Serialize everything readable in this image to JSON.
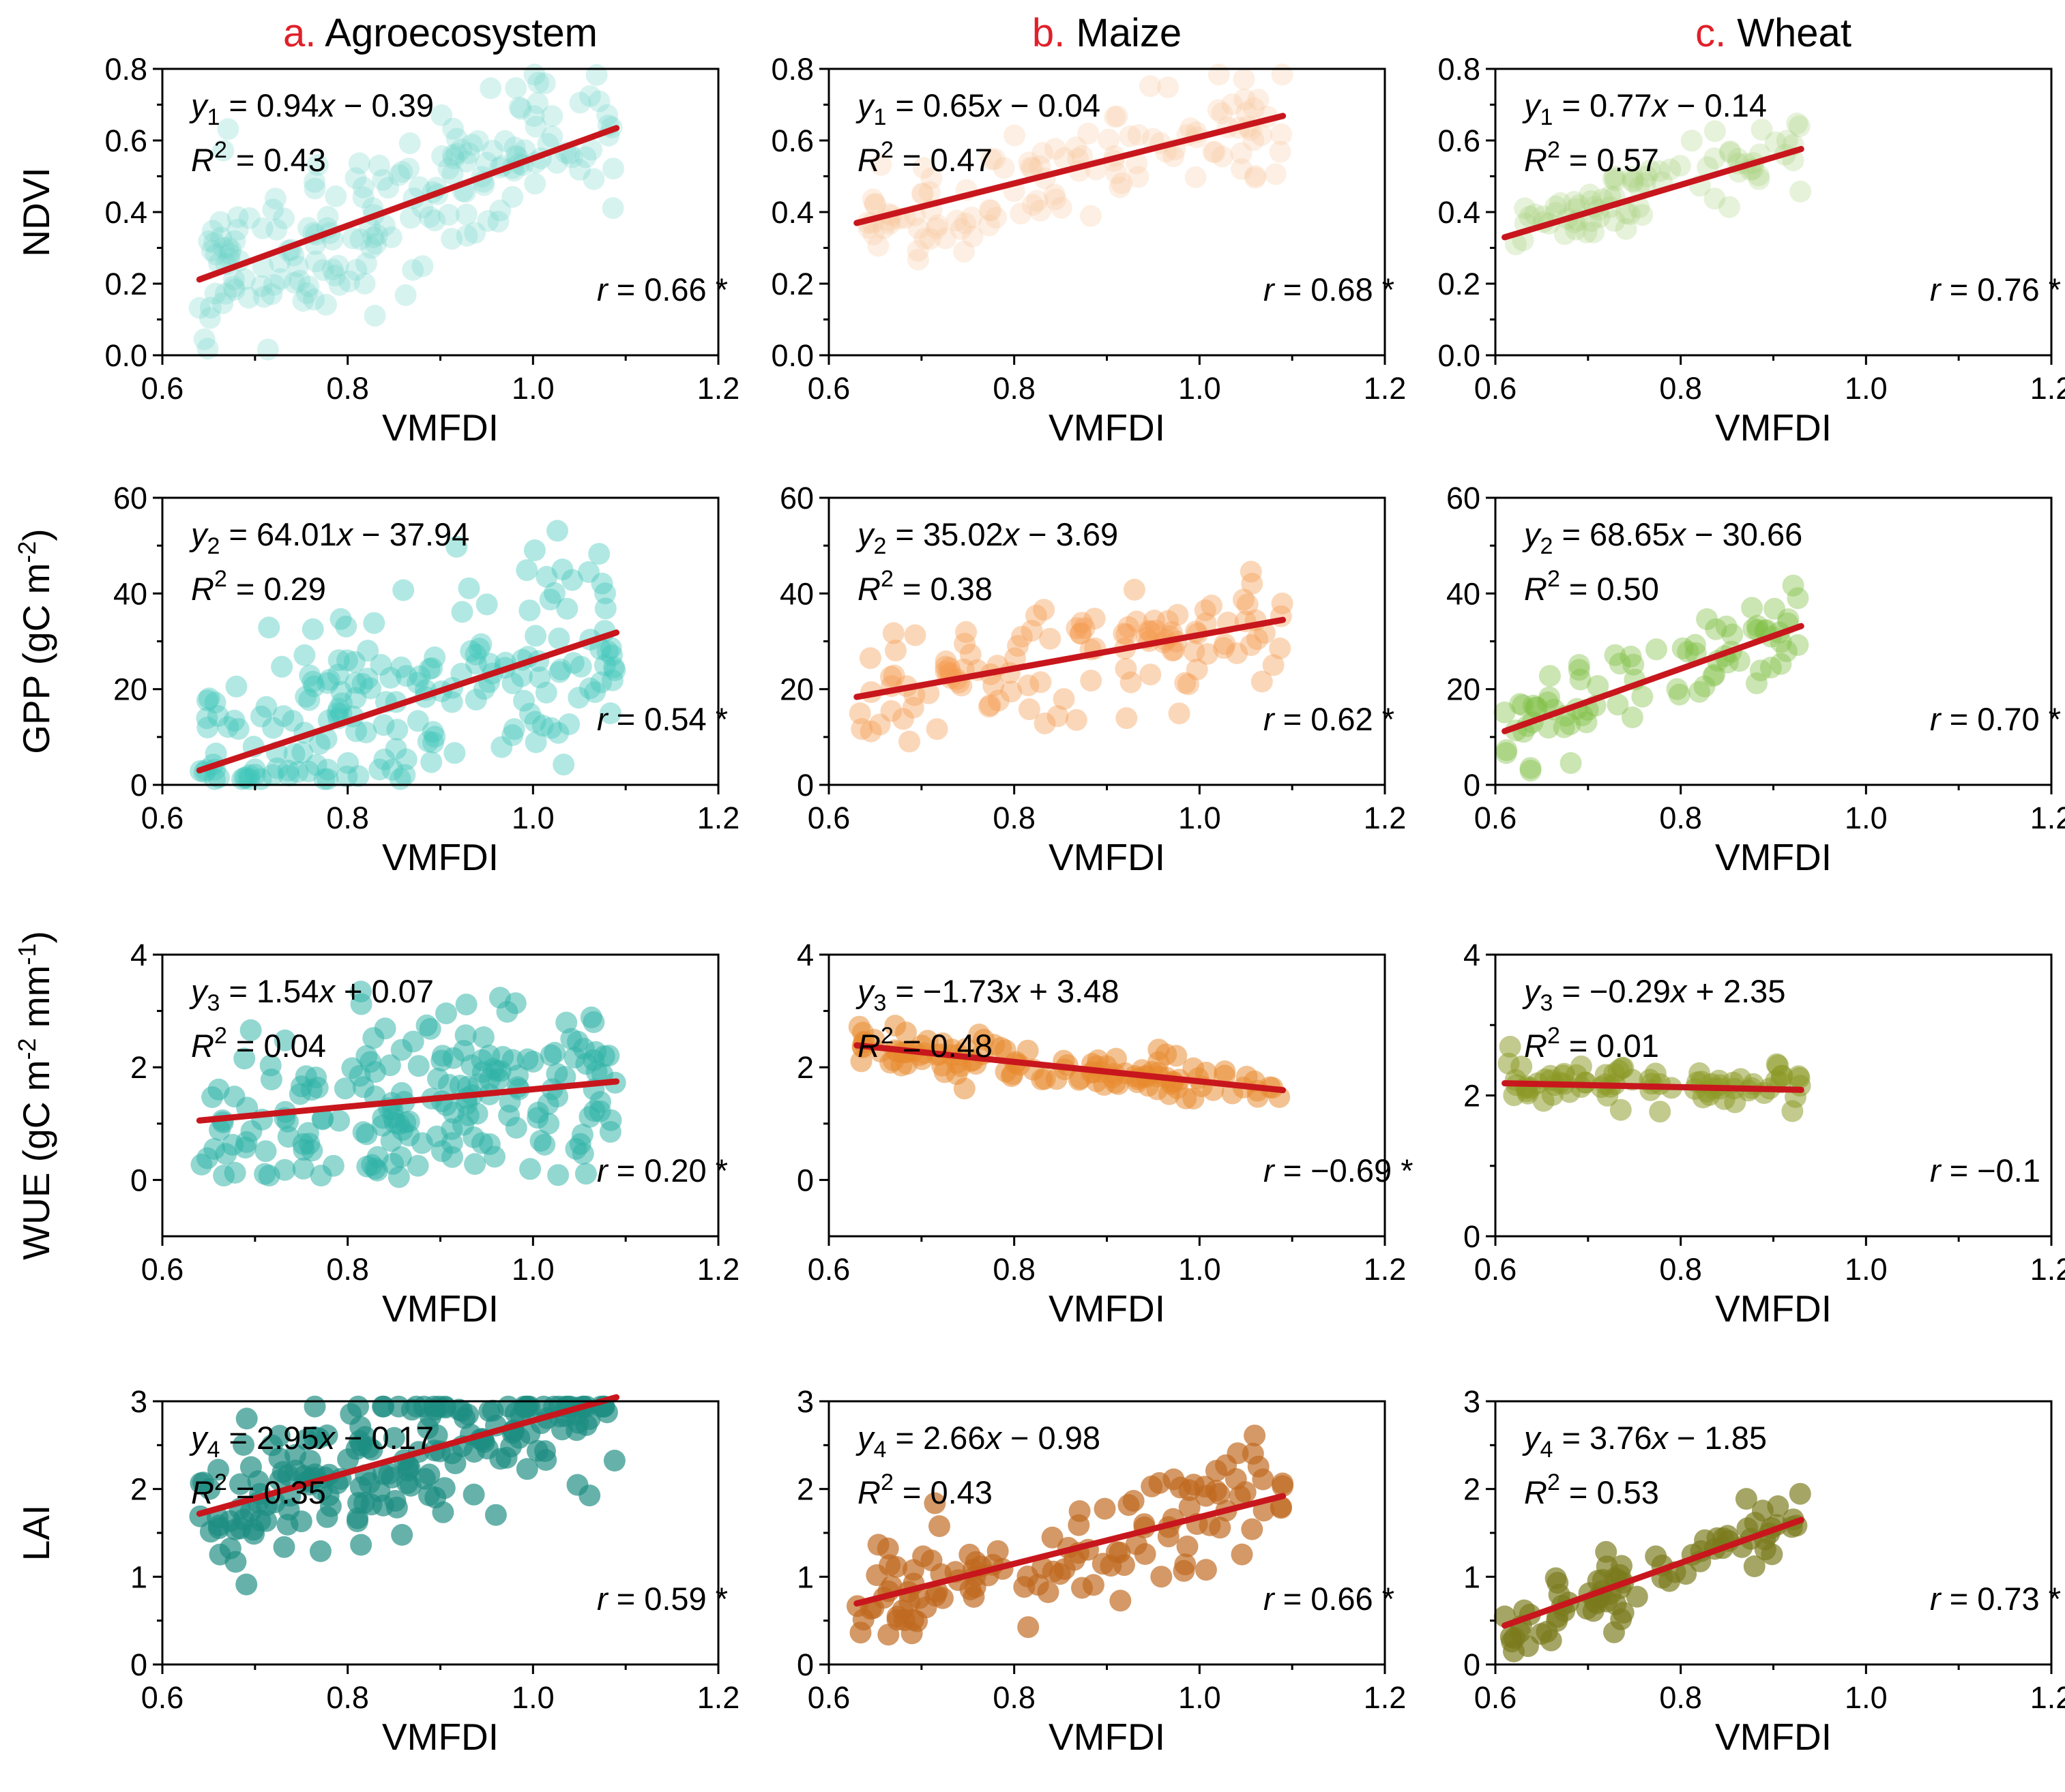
{
  "figure": {
    "columns": [
      {
        "letter": "a.",
        "name": "Agroecosystem"
      },
      {
        "letter": "b.",
        "name": "Maize"
      },
      {
        "letter": "c.",
        "name": "Wheat"
      }
    ],
    "row_labels": [
      {
        "main": "NDVI",
        "unit": ""
      },
      {
        "main": "GPP (gC m",
        "sup": "-2",
        "tail": ")"
      },
      {
        "main": "WUE (gC m",
        "sup": "-2",
        "mid": " mm",
        "sup2": "-1",
        "tail": ")"
      },
      {
        "main": "LAI",
        "unit": ""
      }
    ],
    "colors": {
      "accent_title": "#e0202a",
      "regression_line": "#c8161d",
      "axis": "#000000",
      "agro": [
        "#6fd3c8",
        "#3fc6b9",
        "#2fb3a6",
        "#1e8e82"
      ],
      "maize": [
        "#f9c59b",
        "#f59a4f",
        "#e88a2e",
        "#c0691f"
      ],
      "wheat": [
        "#a6d17b",
        "#7ebf42",
        "#8c9a26",
        "#7a7a1e"
      ]
    },
    "x_label": "VMFDI"
  },
  "chart_data": [
    {
      "type": "scatter",
      "row": 0,
      "col": 0,
      "series": "Agroecosystem",
      "var": "NDVI",
      "ylabel": "NDVI",
      "xlabel": "VMFDI",
      "xlim": [
        0.6,
        1.2
      ],
      "ylim": [
        0.0,
        0.8
      ],
      "xticks": [
        "0.6",
        "0.8",
        "1.0",
        "1.2"
      ],
      "yticks": [
        "0.0",
        "0.2",
        "0.4",
        "0.6",
        "0.8"
      ],
      "slope": 0.94,
      "intercept": -0.39,
      "fit_range": [
        0.64,
        1.09
      ],
      "x_range": [
        0.64,
        1.09
      ],
      "spread": 0.11,
      "n": 190,
      "seed": 11,
      "eq": {
        "sub": "1",
        "slope": "0.94",
        "sign": "−",
        "intercept": "0.39"
      },
      "r2": "0.43",
      "r": "0.66",
      "sig": true
    },
    {
      "type": "scatter",
      "row": 0,
      "col": 1,
      "series": "Maize",
      "var": "NDVI",
      "ylabel": "",
      "xlabel": "VMFDI",
      "xlim": [
        0.6,
        1.2
      ],
      "ylim": [
        0.0,
        0.8
      ],
      "xticks": [
        "0.6",
        "0.8",
        "1.0",
        "1.2"
      ],
      "yticks": [
        "0.0",
        "0.2",
        "0.4",
        "0.6",
        "0.8"
      ],
      "slope": 0.65,
      "intercept": -0.04,
      "fit_range": [
        0.63,
        1.09
      ],
      "x_range": [
        0.63,
        1.09
      ],
      "spread": 0.07,
      "n": 120,
      "seed": 23,
      "eq": {
        "sub": "1",
        "slope": "0.65",
        "sign": "−",
        "intercept": "0.04"
      },
      "r2": "0.47",
      "r": "0.68",
      "sig": true
    },
    {
      "type": "scatter",
      "row": 0,
      "col": 2,
      "series": "Wheat",
      "var": "NDVI",
      "ylabel": "",
      "xlabel": "VMFDI",
      "xlim": [
        0.6,
        1.2
      ],
      "ylim": [
        0.0,
        0.8
      ],
      "xticks": [
        "0.6",
        "0.8",
        "1.0",
        "1.2"
      ],
      "yticks": [
        "0.0",
        "0.2",
        "0.4",
        "0.6",
        "0.8"
      ],
      "slope": 0.77,
      "intercept": -0.14,
      "fit_range": [
        0.61,
        0.93
      ],
      "x_range": [
        0.61,
        0.93
      ],
      "spread": 0.05,
      "n": 80,
      "seed": 37,
      "eq": {
        "sub": "1",
        "slope": "0.77",
        "sign": "−",
        "intercept": "0.14"
      },
      "r2": "0.57",
      "r": "0.76",
      "sig": true
    },
    {
      "type": "scatter",
      "row": 1,
      "col": 0,
      "series": "Agroecosystem",
      "var": "GPP",
      "ylabel": "GPP",
      "xlabel": "VMFDI",
      "xlim": [
        0.6,
        1.2
      ],
      "ylim": [
        0,
        60
      ],
      "xticks": [
        "0.6",
        "0.8",
        "1.0",
        "1.2"
      ],
      "yticks": [
        "0",
        "20",
        "40",
        "60"
      ],
      "slope": 64.01,
      "intercept": -37.94,
      "fit_range": [
        0.64,
        1.09
      ],
      "x_range": [
        0.64,
        1.09
      ],
      "spread": 11,
      "n": 190,
      "seed": 41,
      "clampMin": 0,
      "eq": {
        "sub": "2",
        "slope": "64.01",
        "sign": "−",
        "intercept": "37.94"
      },
      "r2": "0.29",
      "r": "0.54",
      "sig": true
    },
    {
      "type": "scatter",
      "row": 1,
      "col": 1,
      "series": "Maize",
      "var": "GPP",
      "ylabel": "",
      "xlabel": "VMFDI",
      "xlim": [
        0.6,
        1.2
      ],
      "ylim": [
        0,
        60
      ],
      "xticks": [
        "0.6",
        "0.8",
        "1.0",
        "1.2"
      ],
      "yticks": [
        "0",
        "20",
        "40",
        "60"
      ],
      "slope": 35.02,
      "intercept": -3.69,
      "fit_range": [
        0.63,
        1.09
      ],
      "x_range": [
        0.63,
        1.09
      ],
      "spread": 5.5,
      "n": 120,
      "seed": 53,
      "eq": {
        "sub": "2",
        "slope": "35.02",
        "sign": "−",
        "intercept": "3.69"
      },
      "r2": "0.38",
      "r": "0.62",
      "sig": true
    },
    {
      "type": "scatter",
      "row": 1,
      "col": 2,
      "series": "Wheat",
      "var": "GPP",
      "ylabel": "",
      "xlabel": "VMFDI",
      "xlim": [
        0.6,
        1.2
      ],
      "ylim": [
        0,
        60
      ],
      "xticks": [
        "0.6",
        "0.8",
        "1.0",
        "1.2"
      ],
      "yticks": [
        "0",
        "20",
        "40",
        "60"
      ],
      "slope": 68.65,
      "intercept": -30.66,
      "fit_range": [
        0.61,
        0.93
      ],
      "x_range": [
        0.61,
        0.93
      ],
      "spread": 5,
      "n": 80,
      "seed": 67,
      "eq": {
        "sub": "2",
        "slope": "68.65",
        "sign": "−",
        "intercept": "30.66"
      },
      "r2": "0.50",
      "r": "0.70",
      "sig": true
    },
    {
      "type": "scatter",
      "row": 2,
      "col": 0,
      "series": "Agroecosystem",
      "var": "WUE",
      "ylabel": "WUE",
      "xlabel": "VMFDI",
      "xlim": [
        0.6,
        1.2
      ],
      "ylim": [
        -1,
        4
      ],
      "xticks": [
        "0.6",
        "0.8",
        "1.0",
        "1.2"
      ],
      "yticks": [
        "0",
        "2",
        "4"
      ],
      "slope": 1.54,
      "intercept": 0.07,
      "fit_range": [
        0.64,
        1.09
      ],
      "x_range": [
        0.64,
        1.09
      ],
      "spread": 0.8,
      "n": 190,
      "seed": 71,
      "clampMin": 0.05,
      "eq": {
        "sub": "3",
        "slope": "1.54",
        "sign": "+",
        "intercept": "0.07"
      },
      "r2": "0.04",
      "r": "0.20",
      "sig": true
    },
    {
      "type": "scatter",
      "row": 2,
      "col": 1,
      "series": "Maize",
      "var": "WUE",
      "ylabel": "",
      "xlabel": "VMFDI",
      "xlim": [
        0.6,
        1.2
      ],
      "ylim": [
        -1,
        4
      ],
      "xticks": [
        "0.6",
        "0.8",
        "1.0",
        "1.2"
      ],
      "yticks": [
        "0",
        "2",
        "4"
      ],
      "slope": -1.73,
      "intercept": 3.48,
      "fit_range": [
        0.63,
        1.09
      ],
      "x_range": [
        0.63,
        1.09
      ],
      "spread": 0.17,
      "n": 120,
      "seed": 83,
      "eq": {
        "sub": "3",
        "slope": "−1.73",
        "sign": "+",
        "intercept": "3.48"
      },
      "r2": "0.48",
      "r": "−0.69",
      "sig": true
    },
    {
      "type": "scatter",
      "row": 2,
      "col": 2,
      "series": "Wheat",
      "var": "WUE",
      "ylabel": "",
      "xlabel": "VMFDI",
      "xlim": [
        0.6,
        1.2
      ],
      "ylim": [
        0,
        4
      ],
      "xticks": [
        "0.6",
        "0.8",
        "1.0",
        "1.2"
      ],
      "yticks": [
        "0",
        "2",
        "4"
      ],
      "slope": -0.29,
      "intercept": 2.35,
      "fit_range": [
        0.61,
        0.93
      ],
      "x_range": [
        0.61,
        0.93
      ],
      "spread": 0.17,
      "n": 80,
      "seed": 97,
      "eq": {
        "sub": "3",
        "slope": "−0.29",
        "sign": "+",
        "intercept": "2.35"
      },
      "r2": "0.01",
      "r": "−0.1",
      "sig": false
    },
    {
      "type": "scatter",
      "row": 3,
      "col": 0,
      "series": "Agroecosystem",
      "var": "LAI",
      "ylabel": "LAI",
      "xlabel": "VMFDI",
      "xlim": [
        0.6,
        1.2
      ],
      "ylim": [
        0,
        3
      ],
      "xticks": [
        "0.6",
        "0.8",
        "1.0",
        "1.2"
      ],
      "yticks": [
        "0",
        "1",
        "2",
        "3"
      ],
      "slope": 2.95,
      "intercept": -0.17,
      "fit_range": [
        0.64,
        1.09
      ],
      "x_range": [
        0.64,
        1.09
      ],
      "spread": 0.4,
      "n": 190,
      "seed": 101,
      "clampMin": 0.08,
      "eq": {
        "sub": "4",
        "slope": "2.95",
        "sign": "−",
        "intercept": "0.17"
      },
      "r2": "0.35",
      "r": "0.59",
      "sig": true
    },
    {
      "type": "scatter",
      "row": 3,
      "col": 1,
      "series": "Maize",
      "var": "LAI",
      "ylabel": "",
      "xlabel": "VMFDI",
      "xlim": [
        0.6,
        1.2
      ],
      "ylim": [
        0,
        3
      ],
      "xticks": [
        "0.6",
        "0.8",
        "1.0",
        "1.2"
      ],
      "yticks": [
        "0",
        "1",
        "2",
        "3"
      ],
      "slope": 2.66,
      "intercept": -0.98,
      "fit_range": [
        0.63,
        1.09
      ],
      "x_range": [
        0.63,
        1.09
      ],
      "spread": 0.32,
      "n": 120,
      "seed": 113,
      "eq": {
        "sub": "4",
        "slope": "2.66",
        "sign": "−",
        "intercept": "0.98"
      },
      "r2": "0.43",
      "r": "0.66",
      "sig": true
    },
    {
      "type": "scatter",
      "row": 3,
      "col": 2,
      "series": "Wheat",
      "var": "LAI",
      "ylabel": "",
      "xlabel": "VMFDI",
      "xlim": [
        0.6,
        1.2
      ],
      "ylim": [
        0,
        3
      ],
      "xticks": [
        "0.6",
        "0.8",
        "1.0",
        "1.2"
      ],
      "yticks": [
        "0",
        "1",
        "2",
        "3"
      ],
      "slope": 3.76,
      "intercept": -1.85,
      "fit_range": [
        0.61,
        0.93
      ],
      "x_range": [
        0.61,
        0.93
      ],
      "spread": 0.22,
      "n": 80,
      "seed": 127,
      "eq": {
        "sub": "4",
        "slope": "3.76",
        "sign": "−",
        "intercept": "1.85"
      },
      "r2": "0.53",
      "r": "0.73",
      "sig": true
    }
  ]
}
